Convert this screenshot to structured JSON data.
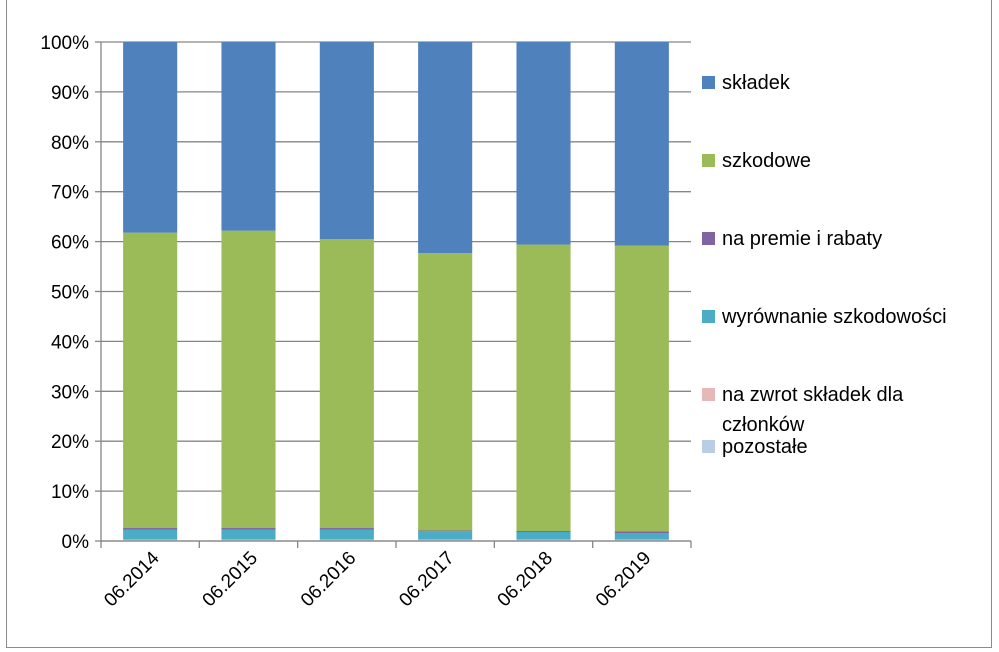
{
  "chart_data": {
    "type": "bar",
    "stacked": true,
    "percent": true,
    "title": "",
    "xlabel": "",
    "ylabel": "",
    "ylim": [
      0,
      100
    ],
    "yticks": [
      "0%",
      "10%",
      "20%",
      "30%",
      "40%",
      "50%",
      "60%",
      "70%",
      "80%",
      "90%",
      "100%"
    ],
    "grid": true,
    "legend_position": "right",
    "categories": [
      "06.2014",
      "06.2015",
      "06.2016",
      "06.2017",
      "06.2018",
      "06.2019"
    ],
    "series": [
      {
        "name": "pozostałe",
        "color": "#b9cde5",
        "values": [
          0.3,
          0.3,
          0.3,
          0.3,
          0.3,
          0.3
        ]
      },
      {
        "name": "na zwrot składek dla członków",
        "color": "#e6b9b8",
        "values": [
          0,
          0,
          0,
          0,
          0,
          0
        ]
      },
      {
        "name": "wyrównanie szkodowości",
        "color": "#4bacc6",
        "values": [
          2.0,
          2.0,
          2.0,
          1.7,
          1.5,
          1.3
        ]
      },
      {
        "name": "na premie i rabaty",
        "color": "#8064a2",
        "values": [
          0.3,
          0.3,
          0.3,
          0.1,
          0.2,
          0.3
        ]
      },
      {
        "name": "szkodowe",
        "color": "#9bbb59",
        "values": [
          59.2,
          59.6,
          57.9,
          55.6,
          57.4,
          57.3
        ]
      },
      {
        "name": "składek",
        "color": "#4f81bd",
        "values": [
          38.2,
          37.8,
          39.5,
          42.3,
          40.6,
          40.8
        ]
      }
    ],
    "legend_order": [
      "składek",
      "szkodowe",
      "na premie i rabaty",
      "wyrównanie szkodowości",
      "na zwrot składek dla członków",
      "pozostałe"
    ]
  }
}
